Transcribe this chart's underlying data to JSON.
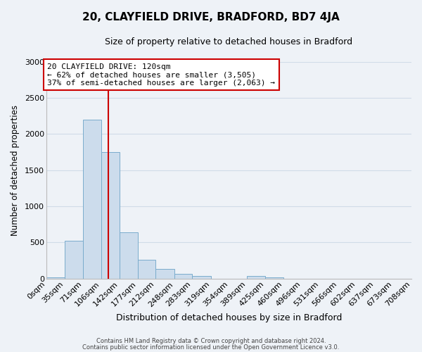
{
  "title_line1": "20, CLAYFIELD DRIVE, BRADFORD, BD7 4JA",
  "title_line2": "Size of property relative to detached houses in Bradford",
  "xlabel": "Distribution of detached houses by size in Bradford",
  "ylabel": "Number of detached properties",
  "bin_edges": [
    0,
    35,
    71,
    106,
    142,
    177,
    212,
    248,
    283,
    319,
    354,
    389,
    425,
    460,
    496,
    531,
    566,
    602,
    637,
    673,
    708
  ],
  "bin_labels": [
    "0sqm",
    "35sqm",
    "71sqm",
    "106sqm",
    "142sqm",
    "177sqm",
    "212sqm",
    "248sqm",
    "283sqm",
    "319sqm",
    "354sqm",
    "389sqm",
    "425sqm",
    "460sqm",
    "496sqm",
    "531sqm",
    "566sqm",
    "602sqm",
    "637sqm",
    "673sqm",
    "708sqm"
  ],
  "bar_heights": [
    20,
    520,
    2200,
    1750,
    640,
    260,
    130,
    65,
    35,
    0,
    0,
    35,
    15,
    0,
    0,
    0,
    0,
    0,
    0,
    0
  ],
  "bar_color": "#ccdcec",
  "bar_edge_color": "#7aaccc",
  "vline_x": 120,
  "vline_color": "#cc0000",
  "annotation_text": "20 CLAYFIELD DRIVE: 120sqm\n← 62% of detached houses are smaller (3,505)\n37% of semi-detached houses are larger (2,063) →",
  "annotation_box_color": "#ffffff",
  "annotation_box_edge": "#cc0000",
  "ylim": [
    0,
    3000
  ],
  "yticks": [
    0,
    500,
    1000,
    1500,
    2000,
    2500,
    3000
  ],
  "footer_line1": "Contains HM Land Registry data © Crown copyright and database right 2024.",
  "footer_line2": "Contains public sector information licensed under the Open Government Licence v3.0.",
  "bg_color": "#eef2f7",
  "grid_color": "#d0dce8",
  "title_fontsize": 11,
  "subtitle_fontsize": 9,
  "ylabel_fontsize": 8.5,
  "xlabel_fontsize": 9,
  "tick_fontsize": 8,
  "footer_fontsize": 6,
  "annot_fontsize": 8
}
